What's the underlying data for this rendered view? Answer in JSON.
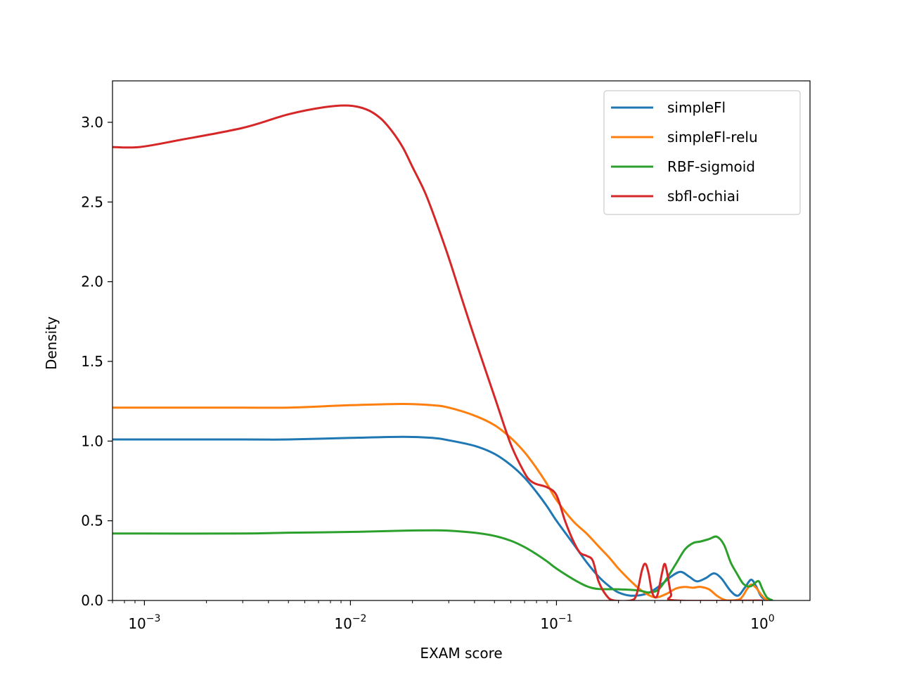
{
  "chart_data": {
    "type": "line",
    "xscale": "log",
    "xlabel": "EXAM score",
    "ylabel": "Density",
    "xlim": [
      0.0007,
      1.7
    ],
    "ylim": [
      0,
      3.26
    ],
    "grid": false,
    "legend_position": "upper-right",
    "xticks": [
      {
        "value": 0.001,
        "mantissa": "10",
        "exp": "−3"
      },
      {
        "value": 0.01,
        "mantissa": "10",
        "exp": "−2"
      },
      {
        "value": 0.1,
        "mantissa": "10",
        "exp": "−1"
      },
      {
        "value": 1,
        "mantissa": "10",
        "exp": "0"
      }
    ],
    "yticks": [
      "0.0",
      "0.5",
      "1.0",
      "1.5",
      "2.0",
      "2.5",
      "3.0"
    ],
    "series": [
      {
        "name": "simpleFl",
        "color": "#1f77b4",
        "points": [
          [
            0.0007,
            1.01
          ],
          [
            0.001,
            1.01
          ],
          [
            0.003,
            1.01
          ],
          [
            0.005,
            1.01
          ],
          [
            0.01,
            1.02
          ],
          [
            0.018,
            1.027
          ],
          [
            0.025,
            1.02
          ],
          [
            0.03,
            1.005
          ],
          [
            0.04,
            0.97
          ],
          [
            0.05,
            0.92
          ],
          [
            0.06,
            0.85
          ],
          [
            0.07,
            0.77
          ],
          [
            0.08,
            0.68
          ],
          [
            0.09,
            0.59
          ],
          [
            0.1,
            0.5
          ],
          [
            0.12,
            0.36
          ],
          [
            0.14,
            0.24
          ],
          [
            0.16,
            0.15
          ],
          [
            0.18,
            0.09
          ],
          [
            0.2,
            0.05
          ],
          [
            0.23,
            0.03
          ],
          [
            0.27,
            0.04
          ],
          [
            0.3,
            0.07
          ],
          [
            0.33,
            0.11
          ],
          [
            0.36,
            0.15
          ],
          [
            0.4,
            0.18
          ],
          [
            0.44,
            0.15
          ],
          [
            0.48,
            0.12
          ],
          [
            0.53,
            0.14
          ],
          [
            0.58,
            0.17
          ],
          [
            0.63,
            0.14
          ],
          [
            0.7,
            0.06
          ],
          [
            0.76,
            0.03
          ],
          [
            0.82,
            0.08
          ],
          [
            0.88,
            0.13
          ],
          [
            0.93,
            0.09
          ],
          [
            0.98,
            0.03
          ],
          [
            1.03,
            0.005
          ],
          [
            1.1,
            0.0
          ]
        ]
      },
      {
        "name": "simpleFl-relu",
        "color": "#ff7f0e",
        "points": [
          [
            0.0007,
            1.21
          ],
          [
            0.001,
            1.21
          ],
          [
            0.003,
            1.21
          ],
          [
            0.005,
            1.21
          ],
          [
            0.01,
            1.225
          ],
          [
            0.018,
            1.233
          ],
          [
            0.025,
            1.225
          ],
          [
            0.03,
            1.21
          ],
          [
            0.04,
            1.16
          ],
          [
            0.05,
            1.1
          ],
          [
            0.06,
            1.02
          ],
          [
            0.07,
            0.93
          ],
          [
            0.08,
            0.83
          ],
          [
            0.09,
            0.73
          ],
          [
            0.1,
            0.63
          ],
          [
            0.12,
            0.5
          ],
          [
            0.14,
            0.42
          ],
          [
            0.16,
            0.34
          ],
          [
            0.18,
            0.27
          ],
          [
            0.2,
            0.2
          ],
          [
            0.23,
            0.12
          ],
          [
            0.26,
            0.06
          ],
          [
            0.3,
            0.02
          ],
          [
            0.34,
            0.04
          ],
          [
            0.38,
            0.075
          ],
          [
            0.42,
            0.085
          ],
          [
            0.46,
            0.08
          ],
          [
            0.5,
            0.085
          ],
          [
            0.55,
            0.07
          ],
          [
            0.6,
            0.03
          ],
          [
            0.65,
            0.005
          ],
          [
            0.7,
            0.0
          ],
          [
            0.78,
            0.01
          ],
          [
            0.84,
            0.07
          ],
          [
            0.88,
            0.1
          ],
          [
            0.93,
            0.08
          ],
          [
            0.98,
            0.04
          ],
          [
            1.03,
            0.01
          ],
          [
            1.08,
            0.0
          ]
        ]
      },
      {
        "name": "RBF-sigmoid",
        "color": "#2ca02c",
        "points": [
          [
            0.0007,
            0.42
          ],
          [
            0.001,
            0.42
          ],
          [
            0.003,
            0.42
          ],
          [
            0.005,
            0.425
          ],
          [
            0.01,
            0.43
          ],
          [
            0.018,
            0.438
          ],
          [
            0.025,
            0.44
          ],
          [
            0.03,
            0.438
          ],
          [
            0.04,
            0.425
          ],
          [
            0.05,
            0.405
          ],
          [
            0.06,
            0.375
          ],
          [
            0.07,
            0.335
          ],
          [
            0.08,
            0.29
          ],
          [
            0.09,
            0.245
          ],
          [
            0.1,
            0.2
          ],
          [
            0.12,
            0.135
          ],
          [
            0.14,
            0.09
          ],
          [
            0.16,
            0.072
          ],
          [
            0.2,
            0.07
          ],
          [
            0.25,
            0.063
          ],
          [
            0.28,
            0.05
          ],
          [
            0.31,
            0.065
          ],
          [
            0.34,
            0.13
          ],
          [
            0.38,
            0.23
          ],
          [
            0.42,
            0.32
          ],
          [
            0.46,
            0.36
          ],
          [
            0.5,
            0.37
          ],
          [
            0.55,
            0.385
          ],
          [
            0.6,
            0.4
          ],
          [
            0.65,
            0.35
          ],
          [
            0.7,
            0.24
          ],
          [
            0.75,
            0.17
          ],
          [
            0.8,
            0.11
          ],
          [
            0.84,
            0.09
          ],
          [
            0.88,
            0.09
          ],
          [
            0.92,
            0.11
          ],
          [
            0.96,
            0.12
          ],
          [
            1.0,
            0.07
          ],
          [
            1.05,
            0.02
          ],
          [
            1.12,
            0.0
          ]
        ]
      },
      {
        "name": "sbfl-ochiai",
        "color": "#d62728",
        "points": [
          [
            0.0007,
            2.845
          ],
          [
            0.00095,
            2.845
          ],
          [
            0.0015,
            2.89
          ],
          [
            0.003,
            2.965
          ],
          [
            0.005,
            3.05
          ],
          [
            0.0075,
            3.095
          ],
          [
            0.0098,
            3.105
          ],
          [
            0.012,
            3.08
          ],
          [
            0.014,
            3.025
          ],
          [
            0.016,
            2.94
          ],
          [
            0.018,
            2.84
          ],
          [
            0.02,
            2.72
          ],
          [
            0.023,
            2.56
          ],
          [
            0.026,
            2.38
          ],
          [
            0.03,
            2.15
          ],
          [
            0.035,
            1.88
          ],
          [
            0.04,
            1.65
          ],
          [
            0.05,
            1.28
          ],
          [
            0.06,
            0.98
          ],
          [
            0.07,
            0.8
          ],
          [
            0.075,
            0.75
          ],
          [
            0.08,
            0.73
          ],
          [
            0.09,
            0.71
          ],
          [
            0.1,
            0.66
          ],
          [
            0.11,
            0.5
          ],
          [
            0.12,
            0.38
          ],
          [
            0.13,
            0.3
          ],
          [
            0.14,
            0.28
          ],
          [
            0.15,
            0.25
          ],
          [
            0.16,
            0.12
          ],
          [
            0.175,
            0.03
          ],
          [
            0.19,
            0.0
          ],
          [
            0.23,
            0.0
          ],
          [
            0.245,
            0.04
          ],
          [
            0.26,
            0.19
          ],
          [
            0.27,
            0.23
          ],
          [
            0.28,
            0.17
          ],
          [
            0.29,
            0.06
          ],
          [
            0.3,
            0.02
          ],
          [
            0.31,
            0.04
          ],
          [
            0.325,
            0.17
          ],
          [
            0.335,
            0.23
          ],
          [
            0.345,
            0.17
          ],
          [
            0.36,
            0.04
          ],
          [
            0.38,
            0.0
          ],
          [
            1.0,
            0.0
          ]
        ]
      }
    ]
  }
}
